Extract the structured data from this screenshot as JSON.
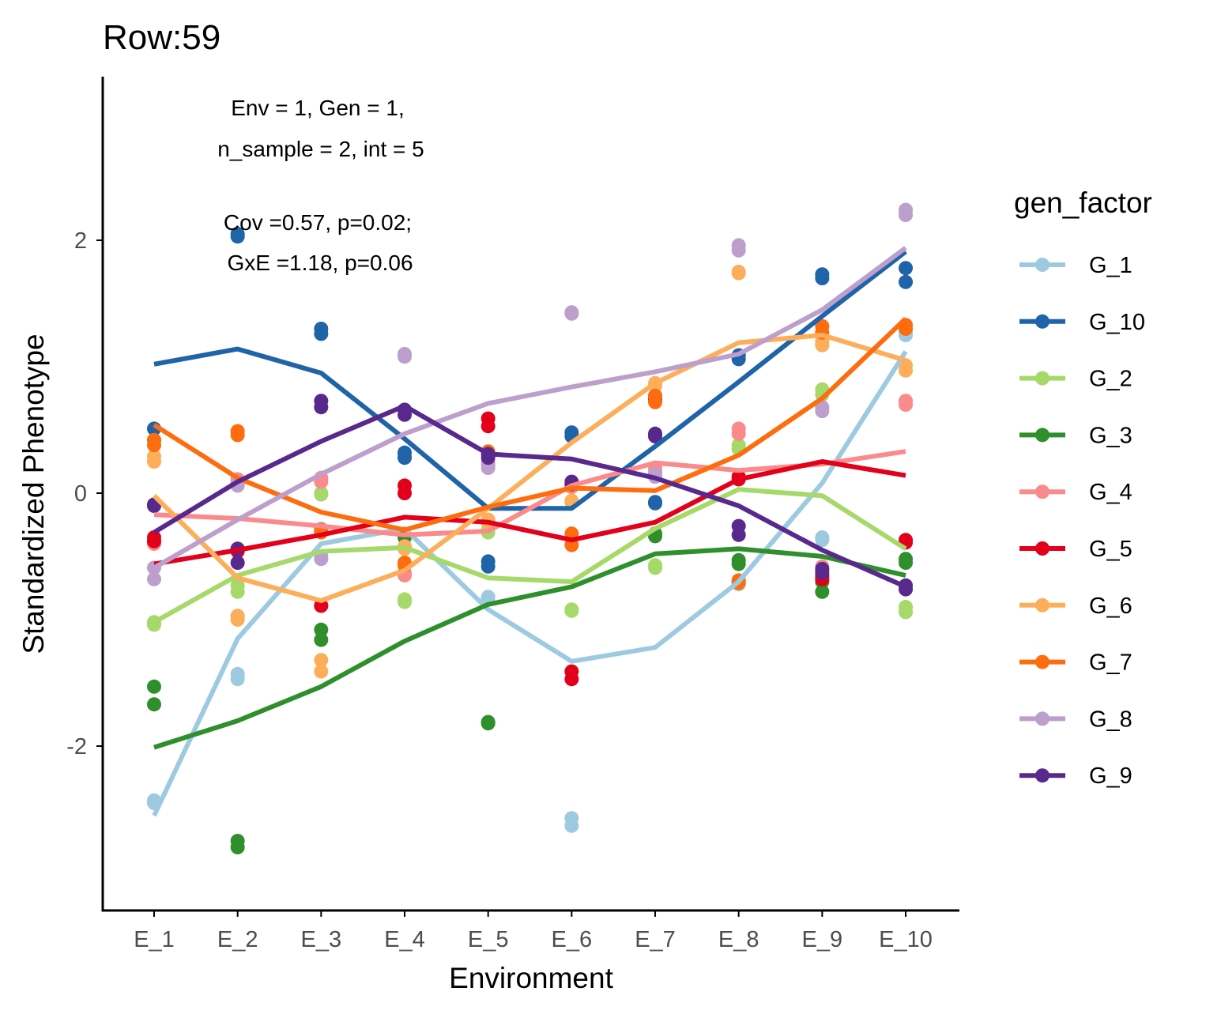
{
  "chart_data": {
    "type": "line",
    "title": "Row:59",
    "xlabel": "Environment",
    "ylabel": "Standardized Phenotype",
    "categories": [
      "E_1",
      "E_2",
      "E_3",
      "E_4",
      "E_5",
      "E_6",
      "E_7",
      "E_8",
      "E_9",
      "E_10"
    ],
    "ylim": [
      -3.3,
      3.3
    ],
    "yticks": [
      -2,
      0,
      2
    ],
    "ytick_labels": [
      "-2",
      "0",
      "2"
    ],
    "grid": false,
    "legend": {
      "title": "gen_factor",
      "position": "right"
    },
    "annotations": {
      "line1": "Env = 1, Gen = 1,",
      "line2": "n_sample = 2, int = 5",
      "line3": "Cov =0.57, p=0.02;",
      "line4": "GxE =1.18, p=0.06"
    },
    "series": [
      {
        "name": "G_1",
        "color": "#9ecae1",
        "values": [
          -2.55,
          -1.15,
          -0.4,
          -0.28,
          -0.92,
          -1.33,
          -1.22,
          -0.7,
          0.08,
          1.12
        ],
        "points": [
          [
            -2.43,
            -2.45
          ],
          [
            -1.43,
            -1.47
          ],
          [
            -0.28,
            -0.3
          ],
          [
            0.3,
            0.32
          ],
          [
            -0.82,
            -0.83
          ],
          [
            -2.57,
            -2.63
          ],
          [
            0.14,
            0.16
          ],
          [
            -0.7,
            -0.72
          ],
          [
            -0.35,
            -0.37
          ],
          [
            1.25,
            1.28
          ]
        ]
      },
      {
        "name": "G_10",
        "color": "#1f63a8",
        "values": [
          1.02,
          1.14,
          0.95,
          0.43,
          -0.12,
          -0.12,
          0.37,
          0.88,
          1.4,
          1.91
        ],
        "points": [
          [
            0.42,
            0.51
          ],
          [
            2.03,
            2.05
          ],
          [
            1.26,
            1.3
          ],
          [
            0.28,
            0.32
          ],
          [
            -0.54,
            -0.58
          ],
          [
            0.45,
            0.48
          ],
          [
            -0.07,
            -0.08
          ],
          [
            1.06,
            1.09
          ],
          [
            1.7,
            1.73
          ],
          [
            1.67,
            1.78
          ]
        ]
      },
      {
        "name": "G_2",
        "color": "#a6d96a",
        "values": [
          -1.02,
          -0.65,
          -0.46,
          -0.43,
          -0.67,
          -0.7,
          -0.28,
          0.03,
          -0.02,
          -0.44
        ],
        "points": [
          [
            -1.02,
            -1.04
          ],
          [
            -0.73,
            -0.78
          ],
          [
            0.0,
            -0.01
          ],
          [
            -0.84,
            -0.86
          ],
          [
            -0.29,
            -0.31
          ],
          [
            -0.92,
            -0.93
          ],
          [
            -0.57,
            -0.59
          ],
          [
            0.35,
            0.38
          ],
          [
            0.78,
            0.82
          ],
          [
            -0.9,
            -0.94
          ]
        ]
      },
      {
        "name": "G_3",
        "color": "#2e8f2c",
        "values": [
          -2.01,
          -1.8,
          -1.53,
          -1.17,
          -0.88,
          -0.74,
          -0.48,
          -0.44,
          -0.5,
          -0.65
        ],
        "points": [
          [
            -1.53,
            -1.67
          ],
          [
            -2.75,
            -2.8
          ],
          [
            -1.08,
            -1.16
          ],
          [
            -0.33,
            -0.35
          ],
          [
            -1.81,
            -1.82
          ],
          [
            0.05,
            0.06
          ],
          [
            -0.32,
            -0.34
          ],
          [
            -0.53,
            -0.56
          ],
          [
            -0.7,
            -0.78
          ],
          [
            -0.52,
            -0.55
          ]
        ]
      },
      {
        "name": "G_4",
        "color": "#fb8a8c",
        "values": [
          -0.17,
          -0.2,
          -0.26,
          -0.33,
          -0.3,
          0.06,
          0.24,
          0.18,
          0.23,
          0.33
        ],
        "points": [
          [
            -0.38,
            -0.4
          ],
          [
            0.09,
            0.11
          ],
          [
            0.09,
            0.12
          ],
          [
            -0.63,
            -0.65
          ],
          [
            0.22,
            0.24
          ],
          [
            0.05,
            0.07
          ],
          [
            0.17,
            0.2
          ],
          [
            0.47,
            0.51
          ],
          [
            -0.58,
            -0.66
          ],
          [
            0.7,
            0.73
          ]
        ]
      },
      {
        "name": "G_5",
        "color": "#e2001a",
        "values": [
          -0.56,
          -0.45,
          -0.33,
          -0.19,
          -0.23,
          -0.37,
          -0.23,
          0.11,
          0.25,
          0.14
        ],
        "points": [
          [
            -0.35,
            -0.38
          ],
          [
            -0.44,
            -0.46
          ],
          [
            -0.89,
            -0.89
          ],
          [
            0.0,
            0.06
          ],
          [
            0.53,
            0.59
          ],
          [
            -1.41,
            -1.47
          ],
          [
            0.74,
            0.77
          ],
          [
            0.11,
            0.13
          ],
          [
            -0.65,
            -0.68
          ],
          [
            -0.37,
            -0.39
          ]
        ]
      },
      {
        "name": "G_6",
        "color": "#fdae5b",
        "values": [
          -0.02,
          -0.67,
          -0.85,
          -0.61,
          -0.12,
          0.4,
          0.87,
          1.19,
          1.25,
          1.05
        ],
        "points": [
          [
            0.25,
            0.29
          ],
          [
            -0.97,
            -1.0
          ],
          [
            -1.32,
            -1.41
          ],
          [
            -0.42,
            -0.44
          ],
          [
            -0.21,
            -0.23
          ],
          [
            -0.06,
            -0.07
          ],
          [
            0.85,
            0.87
          ],
          [
            1.74,
            1.75
          ],
          [
            1.17,
            1.2
          ],
          [
            0.97,
            1.01
          ]
        ]
      },
      {
        "name": "G_7",
        "color": "#fd6d0f",
        "values": [
          0.54,
          0.12,
          -0.15,
          -0.29,
          -0.11,
          0.04,
          0.02,
          0.3,
          0.75,
          1.38
        ],
        "points": [
          [
            0.38,
            0.42
          ],
          [
            0.46,
            0.49
          ],
          [
            -0.29,
            -0.31
          ],
          [
            -0.55,
            -0.57
          ],
          [
            0.3,
            0.33
          ],
          [
            -0.32,
            -0.41
          ],
          [
            0.72,
            0.77
          ],
          [
            -0.69,
            -0.71
          ],
          [
            1.27,
            1.32
          ],
          [
            1.3,
            1.33
          ]
        ]
      },
      {
        "name": "G_8",
        "color": "#bc9fcd",
        "values": [
          -0.59,
          -0.21,
          0.15,
          0.47,
          0.71,
          0.84,
          0.96,
          1.1,
          1.45,
          1.94
        ],
        "points": [
          [
            -0.59,
            -0.68
          ],
          [
            0.06,
            0.08
          ],
          [
            -0.5,
            -0.52
          ],
          [
            1.08,
            1.1
          ],
          [
            0.2,
            0.23
          ],
          [
            1.42,
            1.43
          ],
          [
            0.13,
            0.15
          ],
          [
            1.92,
            1.96
          ],
          [
            0.65,
            0.68
          ],
          [
            2.2,
            2.24
          ]
        ]
      },
      {
        "name": "G_9",
        "color": "#59288c",
        "values": [
          -0.31,
          0.09,
          0.41,
          0.69,
          0.31,
          0.27,
          0.12,
          -0.1,
          -0.45,
          -0.74
        ],
        "points": [
          [
            -0.09,
            -0.1
          ],
          [
            -0.44,
            -0.55
          ],
          [
            0.68,
            0.73
          ],
          [
            0.62,
            0.66
          ],
          [
            0.28,
            0.31
          ],
          [
            0.07,
            0.09
          ],
          [
            0.45,
            0.47
          ],
          [
            -0.26,
            -0.33
          ],
          [
            -0.6,
            -0.63
          ],
          [
            -0.73,
            -0.76
          ]
        ]
      }
    ]
  }
}
